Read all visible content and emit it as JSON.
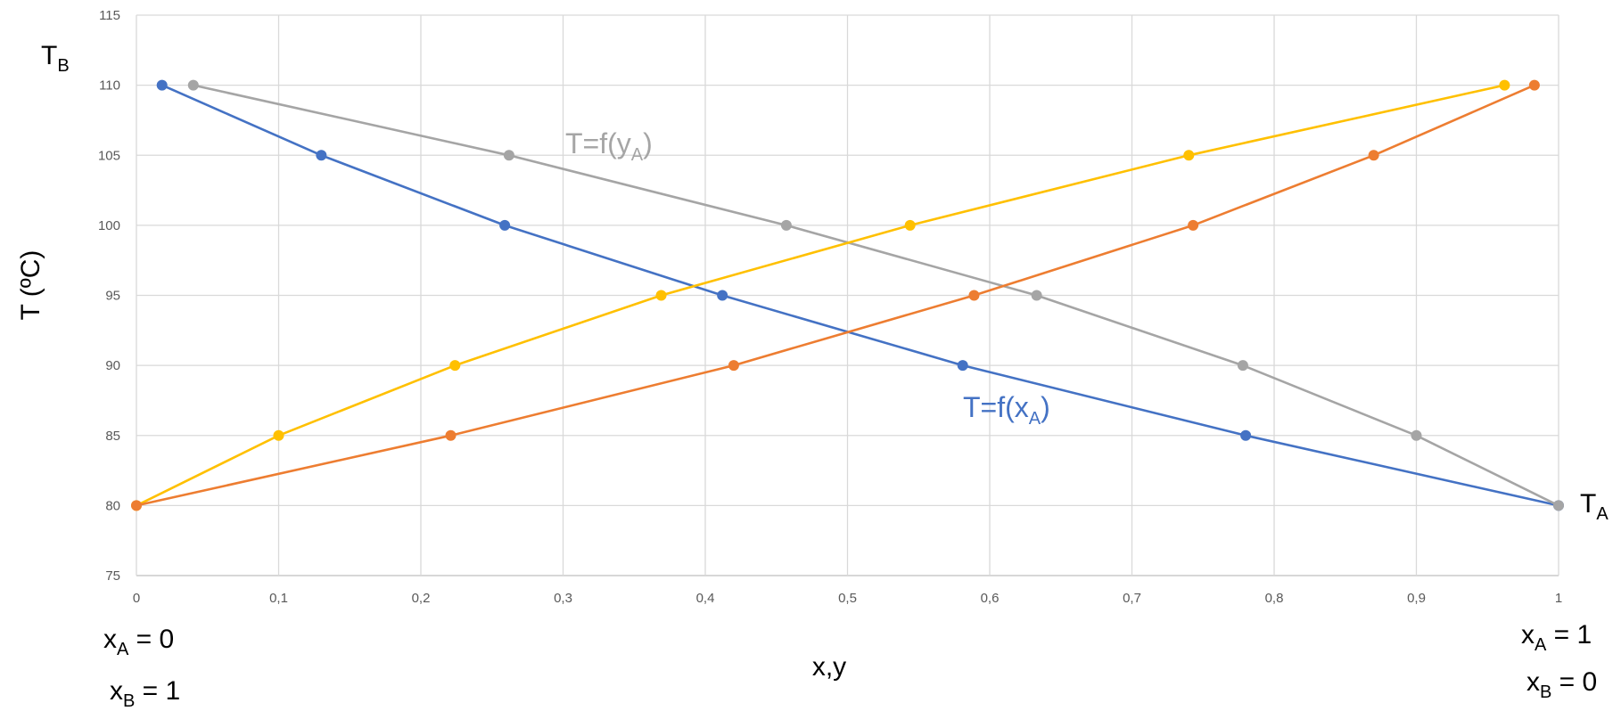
{
  "chart_data": {
    "type": "line",
    "xlabel": "x,y",
    "ylabel": "T (ºC)",
    "xlim": [
      0,
      1
    ],
    "ylim": [
      75,
      115
    ],
    "x_ticks": [
      "0",
      "0,1",
      "0,2",
      "0,3",
      "0,4",
      "0,5",
      "0,6",
      "0,7",
      "0,8",
      "0,9",
      "1"
    ],
    "y_ticks": [
      "75",
      "80",
      "85",
      "90",
      "95",
      "100",
      "105",
      "110",
      "115"
    ],
    "grid": true,
    "legend": "none",
    "series": [
      {
        "color": "#4472C4",
        "points": [
          [
            0.018,
            110
          ],
          [
            0.13,
            105
          ],
          [
            0.259,
            100
          ],
          [
            0.412,
            95
          ],
          [
            0.581,
            90
          ],
          [
            0.78,
            85
          ],
          [
            1.0,
            80
          ]
        ]
      },
      {
        "color": "#A5A5A5",
        "points": [
          [
            0.04,
            110
          ],
          [
            0.262,
            105
          ],
          [
            0.457,
            100
          ],
          [
            0.633,
            95
          ],
          [
            0.778,
            90
          ],
          [
            0.9,
            85
          ],
          [
            1.0,
            80
          ]
        ]
      },
      {
        "color": "#FFC000",
        "points": [
          [
            0.0,
            80
          ],
          [
            0.1,
            85
          ],
          [
            0.224,
            90
          ],
          [
            0.369,
            95
          ],
          [
            0.544,
            100
          ],
          [
            0.74,
            105
          ],
          [
            0.962,
            110
          ]
        ]
      },
      {
        "color": "#ED7D31",
        "points": [
          [
            0.0,
            80
          ],
          [
            0.221,
            85
          ],
          [
            0.42,
            90
          ],
          [
            0.589,
            95
          ],
          [
            0.743,
            100
          ],
          [
            0.87,
            105
          ],
          [
            0.983,
            110
          ]
        ]
      }
    ],
    "annotations": {
      "y_curve": {
        "text": "T=f(y",
        "sub": "A",
        "close": ")",
        "color": "#A5A5A5"
      },
      "x_curve": {
        "text": "T=f(x",
        "sub": "A",
        "close": ")",
        "color": "#4472C4"
      },
      "tb": {
        "text": "T",
        "sub": "B"
      },
      "ta": {
        "text": "T",
        "sub": "A"
      },
      "left_xa": {
        "text": "x",
        "sub": "A",
        "rest": " = 0"
      },
      "left_xb": {
        "text": "x",
        "sub": "B",
        "rest": " = 1"
      },
      "right_xa": {
        "text": "x",
        "sub": "A",
        "rest": " = 1"
      },
      "right_xb": {
        "text": "x",
        "sub": "B",
        "rest": " = 0"
      }
    }
  }
}
